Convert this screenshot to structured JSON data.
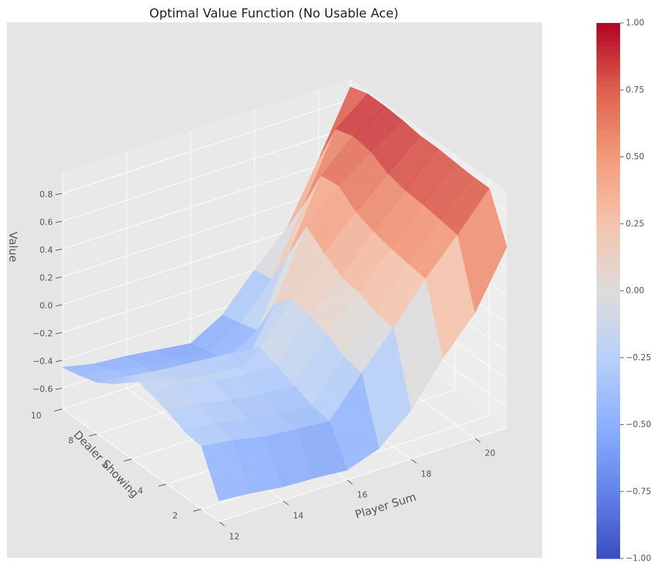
{
  "chart_data": {
    "type": "surface",
    "title": "Optimal Value Function (No Usable Ace)",
    "xlabel": "Player Sum",
    "ylabel": "Dealer Showing",
    "zlabel": "Value",
    "x": [
      12,
      13,
      14,
      15,
      16,
      17,
      18,
      19,
      20,
      21
    ],
    "y": [
      1,
      2,
      3,
      4,
      5,
      6,
      7,
      8,
      9,
      10
    ],
    "z": [
      [
        -0.6,
        -0.62,
        -0.65,
        -0.66,
        -0.68,
        -0.6,
        -0.4,
        -0.1,
        0.15,
        0.55
      ],
      [
        -0.3,
        -0.33,
        -0.38,
        -0.4,
        -0.42,
        -0.15,
        0.1,
        0.38,
        0.62,
        0.88
      ],
      [
        -0.28,
        -0.3,
        -0.35,
        -0.38,
        -0.4,
        -0.12,
        0.12,
        0.4,
        0.64,
        0.88
      ],
      [
        -0.22,
        -0.25,
        -0.3,
        -0.33,
        -0.35,
        -0.05,
        0.18,
        0.42,
        0.66,
        0.89
      ],
      [
        -0.18,
        -0.2,
        -0.25,
        -0.28,
        -0.3,
        0.0,
        0.2,
        0.45,
        0.67,
        0.9
      ],
      [
        -0.15,
        -0.18,
        -0.2,
        -0.22,
        -0.25,
        0.02,
        0.28,
        0.5,
        0.7,
        0.9
      ],
      [
        -0.3,
        -0.35,
        -0.42,
        -0.45,
        -0.48,
        -0.1,
        0.38,
        0.6,
        0.77,
        0.92
      ],
      [
        -0.38,
        -0.4,
        -0.48,
        -0.5,
        -0.52,
        -0.38,
        0.1,
        0.58,
        0.79,
        0.93
      ],
      [
        -0.42,
        -0.45,
        -0.5,
        -0.52,
        -0.55,
        -0.42,
        -0.18,
        0.28,
        0.75,
        0.93
      ],
      [
        -0.45,
        -0.5,
        -0.52,
        -0.55,
        -0.58,
        -0.45,
        -0.2,
        0.02,
        0.44,
        0.89
      ]
    ],
    "xlim": [
      12,
      21
    ],
    "ylim": [
      1,
      10
    ],
    "zlim": [
      -0.75,
      0.95
    ],
    "xticks": [
      12,
      14,
      16,
      18,
      20
    ],
    "yticks": [
      2,
      4,
      6,
      8,
      10
    ],
    "zticks": [
      {
        "value": -0.6,
        "label": "−0.6"
      },
      {
        "value": -0.4,
        "label": "−0.4"
      },
      {
        "value": -0.2,
        "label": "−0.2"
      },
      {
        "value": 0,
        "label": "0.0"
      },
      0.2,
      0.4,
      0.6,
      0.8
    ],
    "colormap": "coolwarm",
    "clim": [
      -1,
      1
    ],
    "cticks": [
      {
        "value": -1,
        "label": "−1.00"
      },
      {
        "value": -0.75,
        "label": "−0.75"
      },
      {
        "value": -0.5,
        "label": "−0.50"
      },
      {
        "value": -0.25,
        "label": "−0.25"
      },
      {
        "value": 0,
        "label": "0.00"
      },
      {
        "value": 0.25,
        "label": "0.25"
      },
      {
        "value": 0.5,
        "label": "0.50"
      },
      {
        "value": 0.75,
        "label": "0.75"
      },
      {
        "value": 1,
        "label": "1.00"
      }
    ],
    "grid": true
  }
}
